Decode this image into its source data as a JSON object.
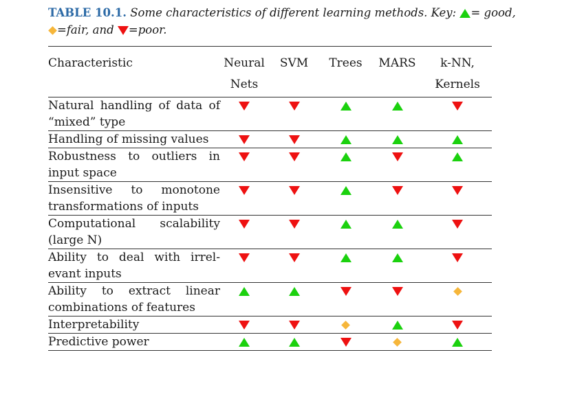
{
  "caption": {
    "label": "TABLE 10.1.",
    "text": "Some characteristics of different learning methods. Key:",
    "good": "= good,",
    "fair": "=fair, and",
    "poor": "=poor."
  },
  "colors": {
    "good": "#1bd10e",
    "fair": "#f6b63a",
    "poor": "#ee1111",
    "caption_label": "#2c6aa6"
  },
  "symbols": {
    "good": "green-up-triangle",
    "fair": "orange-diamond",
    "poor": "red-down-triangle"
  },
  "headers": {
    "characteristic": "Characteristic",
    "neural_nets": [
      "Neural",
      "Nets"
    ],
    "svm": "SVM",
    "trees": "Trees",
    "mars": "MARS",
    "knn": [
      "k-NN,",
      "Kernels"
    ]
  },
  "rows": [
    {
      "label": "Natural handling of data of “mixed” type",
      "ratings": [
        "poor",
        "poor",
        "good",
        "good",
        "poor"
      ]
    },
    {
      "label": "Handling of missing values",
      "ratings": [
        "poor",
        "poor",
        "good",
        "good",
        "good"
      ]
    },
    {
      "label": "Robustness to outliers in input space",
      "ratings": [
        "poor",
        "poor",
        "good",
        "poor",
        "good"
      ]
    },
    {
      "label": "Insensitive to monotone transformations of inputs",
      "ratings": [
        "poor",
        "poor",
        "good",
        "poor",
        "poor"
      ]
    },
    {
      "label": "Computational scalability (large N)",
      "ratings": [
        "poor",
        "poor",
        "good",
        "good",
        "poor"
      ]
    },
    {
      "label": "Ability to deal with irrel-evant inputs",
      "ratings": [
        "poor",
        "poor",
        "good",
        "good",
        "poor"
      ]
    },
    {
      "label": "Ability to extract linear combinations of features",
      "ratings": [
        "good",
        "good",
        "poor",
        "poor",
        "fair"
      ]
    },
    {
      "label": "Interpretability",
      "ratings": [
        "poor",
        "poor",
        "fair",
        "good",
        "poor"
      ]
    },
    {
      "label": "Predictive power",
      "ratings": [
        "good",
        "good",
        "poor",
        "fair",
        "good"
      ]
    }
  ]
}
